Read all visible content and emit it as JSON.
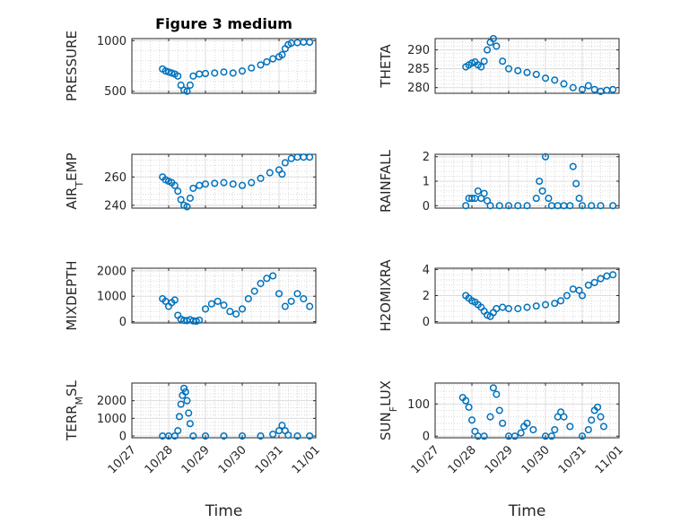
{
  "window": {
    "title": "Figure 3 medium"
  },
  "chart_data": [
    {
      "type": "scatter",
      "title": "Figure 3 medium",
      "ylabel": "PRESSURE",
      "ylim": [
        480,
        1020
      ],
      "yticks": [
        500,
        1000
      ],
      "ytick_labels": [
        "500",
        "1000"
      ],
      "grid": true,
      "marker": "circle-open",
      "color": "#0072BD",
      "x": [
        "10/27 20:00",
        "10/27 22:00",
        "10/28 00:00",
        "10/28 02:00",
        "10/28 04:00",
        "10/28 06:00",
        "10/28 08:00",
        "10/28 10:00",
        "10/28 12:00",
        "10/28 14:00",
        "10/28 16:00",
        "10/28 20:00",
        "10/29 00:00",
        "10/29 06:00",
        "10/29 12:00",
        "10/29 18:00",
        "10/30 00:00",
        "10/30 06:00",
        "10/30 12:00",
        "10/30 16:00",
        "10/30 20:00",
        "10/31 00:00",
        "10/31 02:00",
        "10/31 04:00",
        "10/31 06:00",
        "10/31 08:00",
        "10/31 12:00",
        "10/31 16:00",
        "10/31 20:00"
      ],
      "y": [
        720,
        700,
        690,
        680,
        670,
        650,
        560,
        510,
        500,
        560,
        650,
        670,
        675,
        680,
        690,
        680,
        700,
        730,
        760,
        790,
        820,
        840,
        860,
        920,
        960,
        975,
        980,
        985,
        985
      ]
    },
    {
      "type": "scatter",
      "title": "",
      "ylabel": "THETA",
      "ylim": [
        278.5,
        293
      ],
      "yticks": [
        280,
        285,
        290
      ],
      "ytick_labels": [
        "280",
        "285",
        "290"
      ],
      "grid": true,
      "marker": "circle-open",
      "color": "#0072BD",
      "x": [
        "10/27 20:00",
        "10/27 22:00",
        "10/28 00:00",
        "10/28 02:00",
        "10/28 04:00",
        "10/28 06:00",
        "10/28 08:00",
        "10/28 10:00",
        "10/28 12:00",
        "10/28 14:00",
        "10/28 16:00",
        "10/28 20:00",
        "10/29 00:00",
        "10/29 06:00",
        "10/29 12:00",
        "10/29 18:00",
        "10/30 00:00",
        "10/30 06:00",
        "10/30 12:00",
        "10/30 18:00",
        "10/31 00:00",
        "10/31 04:00",
        "10/31 08:00",
        "10/31 12:00",
        "10/31 16:00",
        "10/31 20:00"
      ],
      "y": [
        285.5,
        286,
        286.5,
        286.8,
        286,
        285.5,
        287,
        290,
        292,
        293,
        291,
        287,
        285,
        284.5,
        284,
        283.5,
        282.5,
        282,
        281,
        280,
        279.5,
        280.5,
        279.5,
        279,
        279.3,
        279.5
      ]
    },
    {
      "type": "scatter",
      "title": "",
      "ylabel": "AIR_TEMP",
      "ylim": [
        238,
        276
      ],
      "yticks": [
        240,
        260
      ],
      "ytick_labels": [
        "240",
        "260"
      ],
      "grid": true,
      "marker": "circle-open",
      "color": "#0072BD",
      "x": [
        "10/27 20:00",
        "10/27 22:00",
        "10/28 00:00",
        "10/28 02:00",
        "10/28 04:00",
        "10/28 06:00",
        "10/28 08:00",
        "10/28 10:00",
        "10/28 12:00",
        "10/28 14:00",
        "10/28 16:00",
        "10/28 20:00",
        "10/29 00:00",
        "10/29 06:00",
        "10/29 12:00",
        "10/29 18:00",
        "10/30 00:00",
        "10/30 06:00",
        "10/30 12:00",
        "10/30 18:00",
        "10/31 00:00",
        "10/31 02:00",
        "10/31 04:00",
        "10/31 08:00",
        "10/31 12:00",
        "10/31 16:00",
        "10/31 20:00"
      ],
      "y": [
        260,
        258,
        257,
        256,
        254,
        250,
        244,
        240,
        239,
        245,
        252,
        254,
        255,
        255.5,
        256,
        255,
        254,
        256,
        259,
        263,
        265,
        262,
        270,
        273,
        274,
        274,
        274
      ]
    },
    {
      "type": "scatter",
      "title": "",
      "ylabel": "RAINFALL",
      "ylim": [
        -0.1,
        2.1
      ],
      "yticks": [
        0,
        1,
        2
      ],
      "ytick_labels": [
        "0",
        "1",
        "2"
      ],
      "grid": true,
      "marker": "circle-open",
      "color": "#0072BD",
      "x": [
        "10/27 20:00",
        "10/27 22:00",
        "10/28 00:00",
        "10/28 02:00",
        "10/28 04:00",
        "10/28 06:00",
        "10/28 08:00",
        "10/28 10:00",
        "10/28 12:00",
        "10/28 18:00",
        "10/29 00:00",
        "10/29 06:00",
        "10/29 12:00",
        "10/29 18:00",
        "10/29 20:00",
        "10/29 22:00",
        "10/30 00:00",
        "10/30 02:00",
        "10/30 04:00",
        "10/30 08:00",
        "10/30 12:00",
        "10/30 16:00",
        "10/30 18:00",
        "10/30 20:00",
        "10/30 22:00",
        "10/31 00:00",
        "10/31 06:00",
        "10/31 12:00",
        "10/31 20:00"
      ],
      "y": [
        0,
        0.3,
        0.3,
        0.3,
        0.6,
        0.3,
        0.5,
        0.2,
        0,
        0,
        0,
        0,
        0,
        0.3,
        1,
        0.6,
        2,
        0.3,
        0,
        0,
        0,
        0,
        1.6,
        0.9,
        0.3,
        0,
        0,
        0,
        0
      ]
    },
    {
      "type": "scatter",
      "title": "",
      "ylabel": "MIXDEPTH",
      "ylim": [
        -50,
        2100
      ],
      "yticks": [
        0,
        1000,
        2000
      ],
      "ytick_labels": [
        "0",
        "1000",
        "2000"
      ],
      "grid": true,
      "marker": "circle-open",
      "color": "#0072BD",
      "x": [
        "10/27 20:00",
        "10/27 22:00",
        "10/28 00:00",
        "10/28 02:00",
        "10/28 04:00",
        "10/28 06:00",
        "10/28 08:00",
        "10/28 10:00",
        "10/28 12:00",
        "10/28 14:00",
        "10/28 16:00",
        "10/28 18:00",
        "10/28 20:00",
        "10/29 00:00",
        "10/29 04:00",
        "10/29 08:00",
        "10/29 12:00",
        "10/29 16:00",
        "10/29 20:00",
        "10/30 00:00",
        "10/30 04:00",
        "10/30 08:00",
        "10/30 12:00",
        "10/30 16:00",
        "10/30 20:00",
        "10/31 00:00",
        "10/31 04:00",
        "10/31 08:00",
        "10/31 12:00",
        "10/31 16:00",
        "10/31 20:00"
      ],
      "y": [
        900,
        800,
        600,
        750,
        850,
        250,
        100,
        50,
        40,
        80,
        30,
        20,
        60,
        500,
        700,
        800,
        650,
        400,
        300,
        500,
        900,
        1200,
        1500,
        1700,
        1800,
        1100,
        600,
        800,
        1100,
        900,
        600
      ]
    },
    {
      "type": "scatter",
      "title": "",
      "ylabel": "H2OMIXRA",
      "ylim": [
        -0.1,
        4.1
      ],
      "yticks": [
        0,
        2,
        4
      ],
      "ytick_labels": [
        "0",
        "2",
        "4"
      ],
      "grid": true,
      "marker": "circle-open",
      "color": "#0072BD",
      "x": [
        "10/27 20:00",
        "10/27 22:00",
        "10/28 00:00",
        "10/28 02:00",
        "10/28 04:00",
        "10/28 06:00",
        "10/28 08:00",
        "10/28 10:00",
        "10/28 12:00",
        "10/28 14:00",
        "10/28 16:00",
        "10/28 20:00",
        "10/29 00:00",
        "10/29 06:00",
        "10/29 12:00",
        "10/29 18:00",
        "10/30 00:00",
        "10/30 06:00",
        "10/30 10:00",
        "10/30 14:00",
        "10/30 18:00",
        "10/30 22:00",
        "10/31 00:00",
        "10/31 04:00",
        "10/31 08:00",
        "10/31 12:00",
        "10/31 16:00",
        "10/31 20:00"
      ],
      "y": [
        2,
        1.8,
        1.6,
        1.5,
        1.3,
        1.1,
        0.8,
        0.5,
        0.4,
        0.7,
        1,
        1.1,
        1,
        1,
        1.1,
        1.2,
        1.3,
        1.4,
        1.6,
        2,
        2.5,
        2.4,
        2,
        2.8,
        3,
        3.3,
        3.5,
        3.6
      ]
    },
    {
      "type": "scatter",
      "title": "",
      "xlabel": "Time",
      "ylabel": "TERR_MSL",
      "ylim": [
        -100,
        3000
      ],
      "yticks": [
        0,
        1000,
        2000
      ],
      "ytick_labels": [
        "0",
        "1000",
        "2000"
      ],
      "xticks": [
        "10/27",
        "10/28",
        "10/29",
        "10/30",
        "10/31",
        "11/01"
      ],
      "grid": true,
      "marker": "circle-open",
      "color": "#0072BD",
      "x": [
        "10/27 20:00",
        "10/28 00:00",
        "10/28 04:00",
        "10/28 06:00",
        "10/28 07:00",
        "10/28 08:00",
        "10/28 09:00",
        "10/28 10:00",
        "10/28 11:00",
        "10/28 12:00",
        "10/28 13:00",
        "10/28 14:00",
        "10/28 16:00",
        "10/29 00:00",
        "10/29 12:00",
        "10/30 00:00",
        "10/30 12:00",
        "10/30 20:00",
        "10/31 00:00",
        "10/31 02:00",
        "10/31 04:00",
        "10/31 06:00",
        "10/31 12:00",
        "10/31 20:00"
      ],
      "y": [
        0,
        0,
        0,
        300,
        1100,
        1800,
        2300,
        2700,
        2500,
        2000,
        1300,
        700,
        0,
        0,
        0,
        0,
        0,
        100,
        300,
        600,
        300,
        50,
        0,
        0
      ]
    },
    {
      "type": "scatter",
      "title": "",
      "xlabel": "Time",
      "ylabel": "SUN_FLUX",
      "ylim": [
        -5,
        165
      ],
      "yticks": [
        0,
        100
      ],
      "ytick_labels": [
        "0",
        "100"
      ],
      "xticks": [
        "10/27",
        "10/28",
        "10/29",
        "10/30",
        "10/31",
        "11/01"
      ],
      "grid": true,
      "marker": "circle-open",
      "color": "#0072BD",
      "x": [
        "10/27 18:00",
        "10/27 20:00",
        "10/27 22:00",
        "10/28 00:00",
        "10/28 02:00",
        "10/28 04:00",
        "10/28 08:00",
        "10/28 12:00",
        "10/28 14:00",
        "10/28 16:00",
        "10/28 18:00",
        "10/28 20:00",
        "10/29 00:00",
        "10/29 04:00",
        "10/29 08:00",
        "10/29 10:00",
        "10/29 12:00",
        "10/29 16:00",
        "10/30 00:00",
        "10/30 04:00",
        "10/30 06:00",
        "10/30 08:00",
        "10/30 10:00",
        "10/30 12:00",
        "10/30 16:00",
        "10/31 00:00",
        "10/31 04:00",
        "10/31 06:00",
        "10/31 08:00",
        "10/31 10:00",
        "10/31 12:00",
        "10/31 14:00"
      ],
      "y": [
        120,
        110,
        90,
        50,
        15,
        0,
        0,
        60,
        150,
        130,
        80,
        40,
        0,
        0,
        10,
        30,
        40,
        20,
        0,
        0,
        20,
        60,
        75,
        60,
        30,
        0,
        20,
        50,
        80,
        90,
        60,
        30
      ]
    }
  ]
}
